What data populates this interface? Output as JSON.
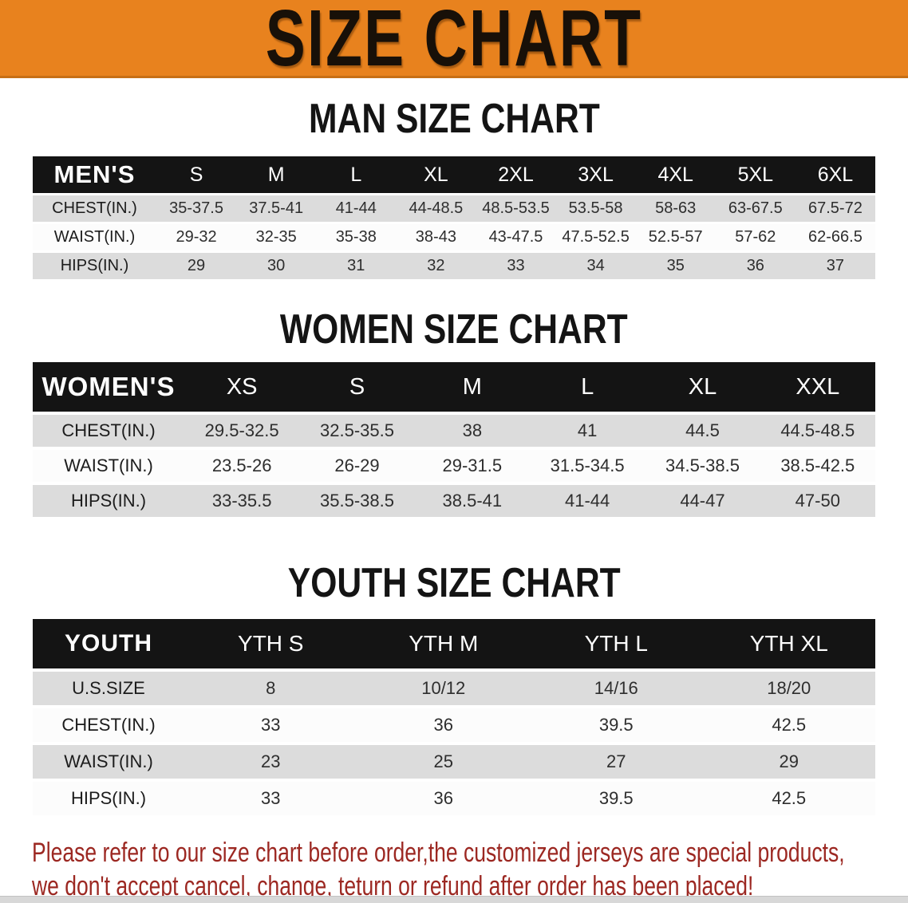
{
  "banner": {
    "title": "SIZE CHART"
  },
  "sections": [
    {
      "heading": "MAN SIZE CHART",
      "corner_label": "MEN'S",
      "columns": [
        "S",
        "M",
        "L",
        "XL",
        "2XL",
        "3XL",
        "4XL",
        "5XL",
        "6XL"
      ],
      "rows": [
        {
          "label": "CHEST(IN.)",
          "values": [
            "35-37.5",
            "37.5-41",
            "41-44",
            "44-48.5",
            "48.5-53.5",
            "53.5-58",
            "58-63",
            "63-67.5",
            "67.5-72"
          ]
        },
        {
          "label": "WAIST(IN.)",
          "values": [
            "29-32",
            "32-35",
            "35-38",
            "38-43",
            "43-47.5",
            "47.5-52.5",
            "52.5-57",
            "57-62",
            "62-66.5"
          ]
        },
        {
          "label": "HIPS(IN.)",
          "values": [
            "29",
            "30",
            "31",
            "32",
            "33",
            "34",
            "35",
            "36",
            "37"
          ]
        }
      ]
    },
    {
      "heading": "WOMEN SIZE CHART",
      "corner_label": "WOMEN'S",
      "columns": [
        "XS",
        "S",
        "M",
        "L",
        "XL",
        "XXL"
      ],
      "rows": [
        {
          "label": "CHEST(IN.)",
          "values": [
            "29.5-32.5",
            "32.5-35.5",
            "38",
            "41",
            "44.5",
            "44.5-48.5"
          ]
        },
        {
          "label": "WAIST(IN.)",
          "values": [
            "23.5-26",
            "26-29",
            "29-31.5",
            "31.5-34.5",
            "34.5-38.5",
            "38.5-42.5"
          ]
        },
        {
          "label": "HIPS(IN.)",
          "values": [
            "33-35.5",
            "35.5-38.5",
            "38.5-41",
            "41-44",
            "44-47",
            "47-50"
          ]
        }
      ]
    },
    {
      "heading": "YOUTH SIZE CHART",
      "corner_label": "YOUTH",
      "columns": [
        "YTH S",
        "YTH M",
        "YTH L",
        "YTH XL"
      ],
      "rows": [
        {
          "label": "U.S.SIZE",
          "values": [
            "8",
            "10/12",
            "14/16",
            "18/20"
          ]
        },
        {
          "label": "CHEST(IN.)",
          "values": [
            "33",
            "36",
            "39.5",
            "42.5"
          ]
        },
        {
          "label": "WAIST(IN.)",
          "values": [
            "23",
            "25",
            "27",
            "29"
          ]
        },
        {
          "label": "HIPS(IN.)",
          "values": [
            "33",
            "36",
            "39.5",
            "42.5"
          ]
        }
      ]
    }
  ],
  "disclaimer": {
    "line1": "Please refer to our size chart before order,the customized jerseys are special products,",
    "line2": "we don't accept cancel, change, teturn or refund after order has been placed!"
  },
  "colors": {
    "banner_orange": "#e8821e",
    "header_black": "#141414",
    "row_gray": "#dcdcdc",
    "row_white": "#fcfcfc",
    "disclaimer_red": "#9c2822"
  }
}
